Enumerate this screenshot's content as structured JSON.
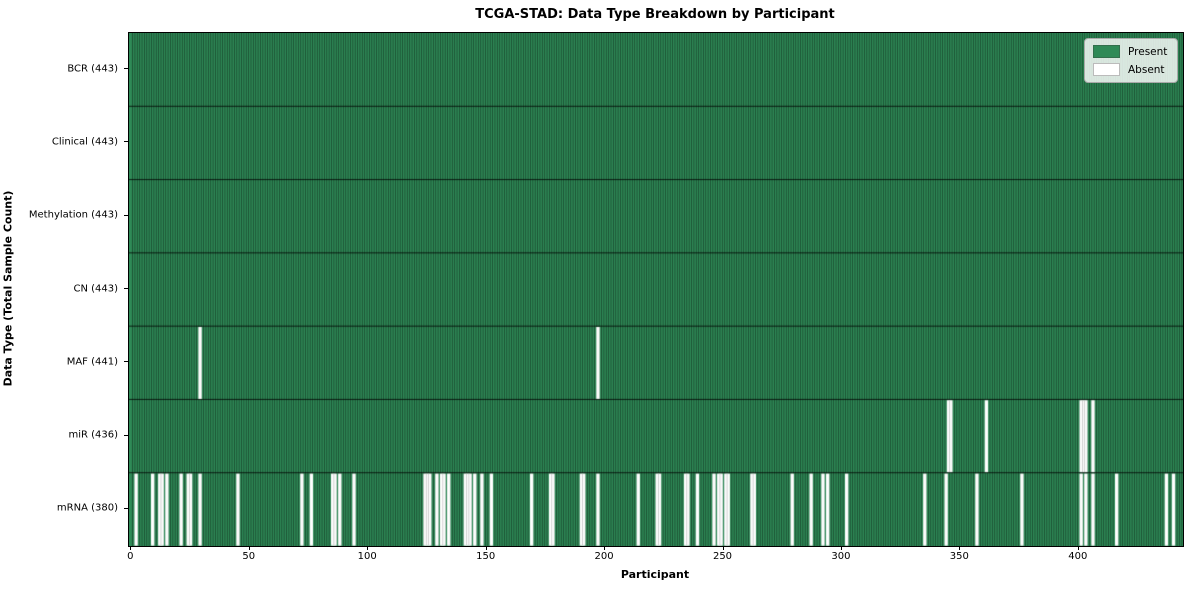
{
  "title": "TCGA-STAD: Data Type Breakdown by Participant",
  "x_axis_label": "Participant",
  "y_axis_label": "Data Type (Total Sample Count)",
  "legend": {
    "present_label": "Present",
    "absent_label": "Absent"
  },
  "colors": {
    "present": "#2f8a57",
    "absent": "#ffffff",
    "bar_edge": "rgba(0,0,0,0.5)",
    "absent_edge": "rgba(0,0,0,0.28)",
    "row_divider": "rgba(0,0,0,0.78)",
    "plot_border": "#000000"
  },
  "chart_data": {
    "type": "heatmap",
    "title": "TCGA-STAD: Data Type Breakdown by Participant",
    "xlabel": "Participant",
    "ylabel": "Data Type (Total Sample Count)",
    "n_participants": 443,
    "xlim": [
      -1,
      444
    ],
    "x_ticks": [
      0,
      50,
      100,
      150,
      200,
      250,
      300,
      350,
      400
    ],
    "grid": false,
    "legend_position": "upper right",
    "legend_entries": [
      {
        "label": "Present",
        "color": "#2f8a57"
      },
      {
        "label": "Absent",
        "color": "#ffffff"
      }
    ],
    "rows": [
      {
        "label": "BCR (443)",
        "data_type": "BCR",
        "total": 443,
        "absent": []
      },
      {
        "label": "Clinical (443)",
        "data_type": "Clinical",
        "total": 443,
        "absent": []
      },
      {
        "label": "Methylation (443)",
        "data_type": "Methylation",
        "total": 443,
        "absent": []
      },
      {
        "label": "CN (443)",
        "data_type": "CN",
        "total": 443,
        "absent": []
      },
      {
        "label": "MAF (441)",
        "data_type": "MAF",
        "total": 441,
        "absent": [
          28,
          196
        ]
      },
      {
        "label": "miR (436)",
        "data_type": "miR",
        "total": 436,
        "absent": [
          344,
          345,
          360,
          400,
          401,
          402,
          405
        ]
      },
      {
        "label": "mRNA (380)",
        "data_type": "mRNA",
        "total": 380,
        "absent": [
          1,
          8,
          11,
          12,
          14,
          20,
          23,
          24,
          28,
          44,
          71,
          75,
          84,
          85,
          87,
          93,
          123,
          124,
          125,
          128,
          130,
          131,
          133,
          140,
          141,
          142,
          144,
          147,
          151,
          168,
          176,
          177,
          189,
          190,
          196,
          213,
          221,
          222,
          233,
          234,
          238,
          245,
          247,
          248,
          250,
          251,
          261,
          262,
          278,
          286,
          291,
          293,
          301,
          334,
          343,
          356,
          375,
          400,
          402,
          405,
          415,
          436,
          439
        ]
      }
    ]
  }
}
